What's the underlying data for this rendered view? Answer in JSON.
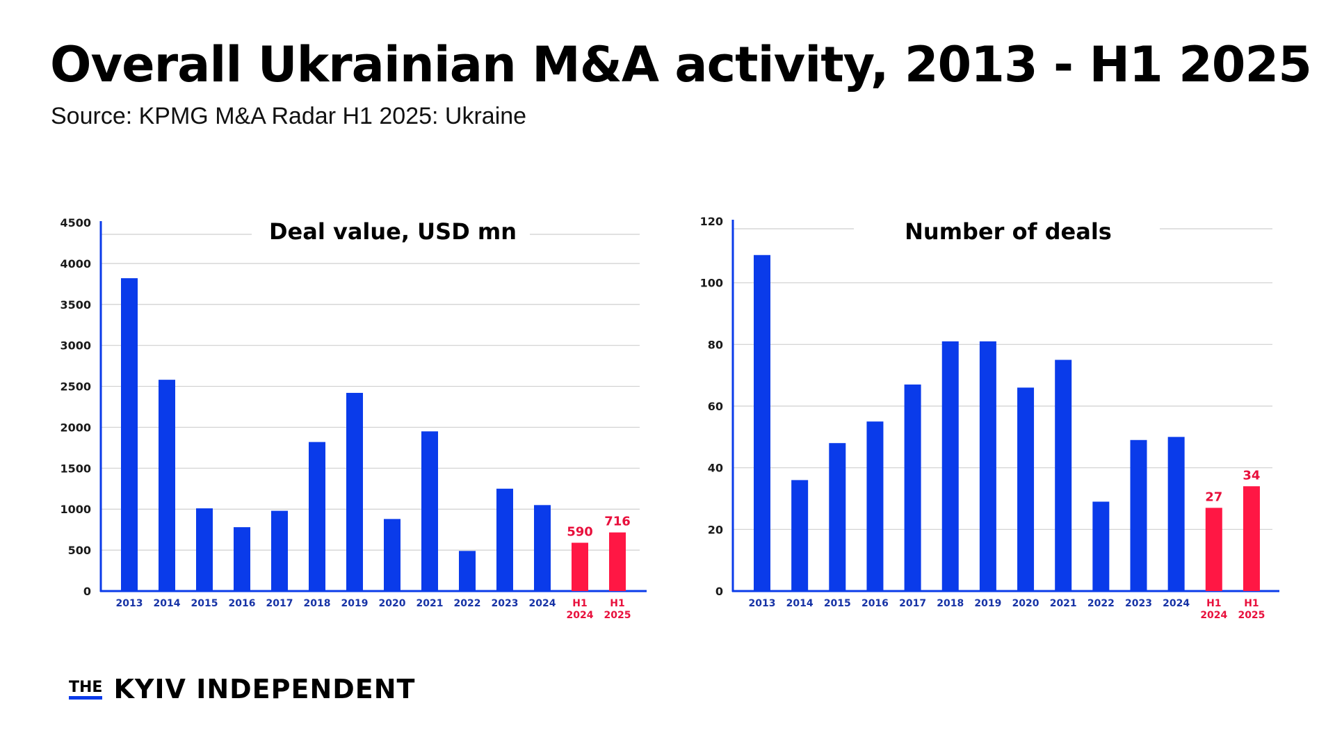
{
  "header": {
    "title": "Overall Ukrainian M&A activity, 2013 - H1 2025",
    "subtitle": "Source: KPMG M&A Radar H1 2025: Ukraine"
  },
  "branding": {
    "the": "THE",
    "name": "KYIV INDEPENDENT"
  },
  "colors": {
    "blue_bar": "#0a3bea",
    "red_bar": "#ff1744",
    "axis": "#0a3bea",
    "grid": "#cfcfcf",
    "blue_tick_label": "#1733a6",
    "red_tick_label": "#e8103c"
  },
  "chart_data": [
    {
      "type": "bar",
      "title": "Deal value, USD mn",
      "xlabel": "",
      "ylabel": "",
      "categories": [
        "2013",
        "2014",
        "2015",
        "2016",
        "2017",
        "2018",
        "2019",
        "2020",
        "2021",
        "2022",
        "2023",
        "2024",
        "H1 2024",
        "H1 2025"
      ],
      "values": [
        3820,
        2580,
        1010,
        780,
        980,
        1820,
        2420,
        880,
        1950,
        490,
        1250,
        1050,
        590,
        716
      ],
      "highlighted": [
        false,
        false,
        false,
        false,
        false,
        false,
        false,
        false,
        false,
        false,
        false,
        false,
        true,
        true
      ],
      "data_labels": [
        "",
        "",
        "",
        "",
        "",
        "",
        "",
        "",
        "",
        "",
        "",
        "",
        "590",
        "716"
      ],
      "yticks": [
        0,
        500,
        1000,
        1500,
        2000,
        2500,
        3000,
        3500,
        4000,
        4500
      ],
      "ylim": [
        0,
        4500
      ],
      "grid": true,
      "legend": "none"
    },
    {
      "type": "bar",
      "title": "Number of deals",
      "xlabel": "",
      "ylabel": "",
      "categories": [
        "2013",
        "2014",
        "2015",
        "2016",
        "2017",
        "2018",
        "2019",
        "2020",
        "2021",
        "2022",
        "2023",
        "2024",
        "H1 2024",
        "H1 2025"
      ],
      "values": [
        109,
        36,
        48,
        55,
        67,
        81,
        81,
        66,
        75,
        29,
        49,
        50,
        27,
        34
      ],
      "highlighted": [
        false,
        false,
        false,
        false,
        false,
        false,
        false,
        false,
        false,
        false,
        false,
        false,
        true,
        true
      ],
      "data_labels": [
        "",
        "",
        "",
        "",
        "",
        "",
        "",
        "",
        "",
        "",
        "",
        "",
        "27",
        "34"
      ],
      "yticks": [
        0,
        20,
        40,
        60,
        80,
        100,
        120
      ],
      "ylim": [
        0,
        120
      ],
      "grid": true,
      "legend": "none"
    }
  ]
}
